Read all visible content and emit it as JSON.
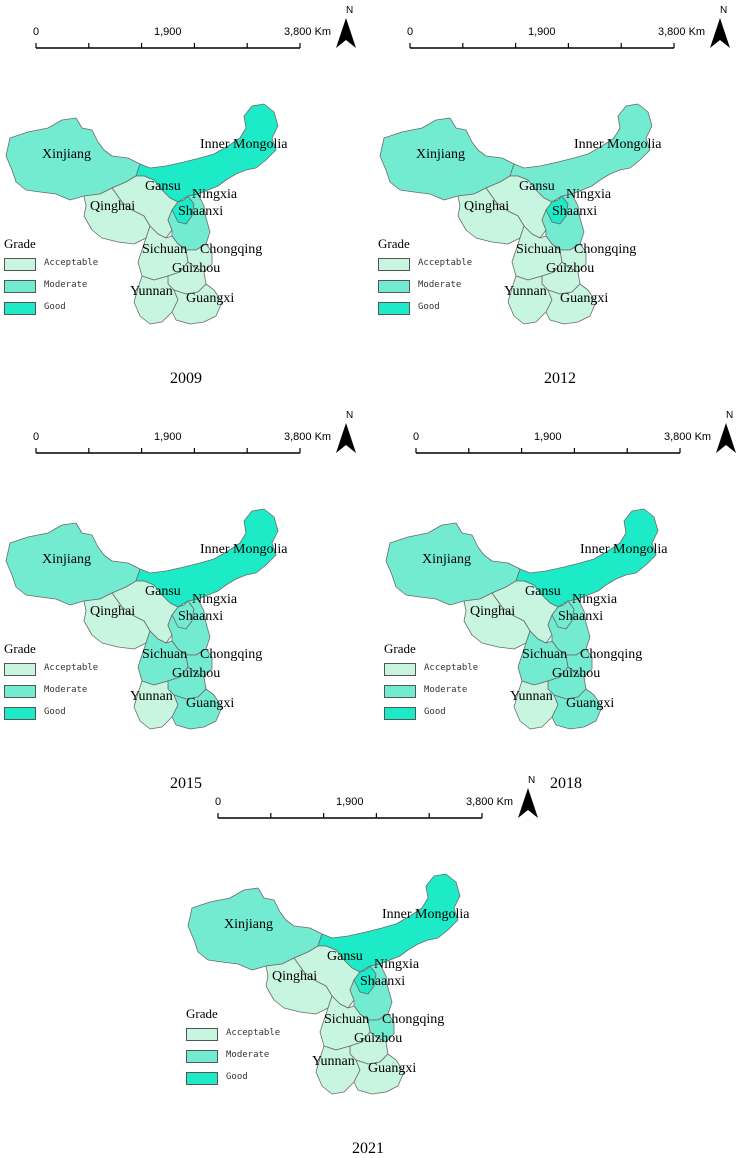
{
  "colors": {
    "acceptable": "#c8f5e0",
    "moderate": "#73ebd1",
    "good": "#1debc8",
    "border": "#6b6b6b"
  },
  "scale": {
    "start": "0",
    "mid": "1,900",
    "end": "3,800 Km"
  },
  "north_label": "N",
  "legend": {
    "title": "Grade",
    "items": [
      {
        "label": "Acceptable",
        "grade": "acceptable"
      },
      {
        "label": "Moderate",
        "grade": "moderate"
      },
      {
        "label": "Good",
        "grade": "good"
      }
    ]
  },
  "region_names": {
    "xinjiang": "Xinjiang",
    "inner_mongolia": "Inner Mongolia",
    "gansu": "Gansu",
    "ningxia": "Ningxia",
    "qinghai": "Qinghai",
    "shaanxi": "Shaanxi",
    "sichuan": "Sichuan",
    "chongqing": "Chongqing",
    "guizhou": "Guizhou",
    "yunnan": "Yunnan",
    "guangxi": "Guangxi"
  },
  "maps": [
    {
      "year": "2009",
      "grades": {
        "xinjiang": "moderate",
        "inner_mongolia": "good",
        "gansu": "acceptable",
        "ningxia": "good",
        "qinghai": "acceptable",
        "shaanxi": "moderate",
        "sichuan": "acceptable",
        "chongqing": "acceptable",
        "guizhou": "acceptable",
        "yunnan": "acceptable",
        "guangxi": "acceptable"
      }
    },
    {
      "year": "2012",
      "grades": {
        "xinjiang": "moderate",
        "inner_mongolia": "moderate",
        "gansu": "acceptable",
        "ningxia": "good",
        "qinghai": "acceptable",
        "shaanxi": "moderate",
        "sichuan": "acceptable",
        "chongqing": "acceptable",
        "guizhou": "acceptable",
        "yunnan": "acceptable",
        "guangxi": "acceptable"
      }
    },
    {
      "year": "2015",
      "grades": {
        "xinjiang": "moderate",
        "inner_mongolia": "good",
        "gansu": "acceptable",
        "ningxia": "moderate",
        "qinghai": "acceptable",
        "shaanxi": "moderate",
        "sichuan": "moderate",
        "chongqing": "moderate",
        "guizhou": "moderate",
        "yunnan": "acceptable",
        "guangxi": "moderate"
      }
    },
    {
      "year": "2018",
      "grades": {
        "xinjiang": "moderate",
        "inner_mongolia": "good",
        "gansu": "acceptable",
        "ningxia": "moderate",
        "qinghai": "acceptable",
        "shaanxi": "moderate",
        "sichuan": "moderate",
        "chongqing": "moderate",
        "guizhou": "moderate",
        "yunnan": "acceptable",
        "guangxi": "moderate"
      }
    },
    {
      "year": "2021",
      "grades": {
        "xinjiang": "moderate",
        "inner_mongolia": "good",
        "gansu": "acceptable",
        "ningxia": "good",
        "qinghai": "acceptable",
        "shaanxi": "moderate",
        "sichuan": "acceptable",
        "chongqing": "moderate",
        "guizhou": "acceptable",
        "yunnan": "acceptable",
        "guangxi": "acceptable"
      }
    }
  ]
}
